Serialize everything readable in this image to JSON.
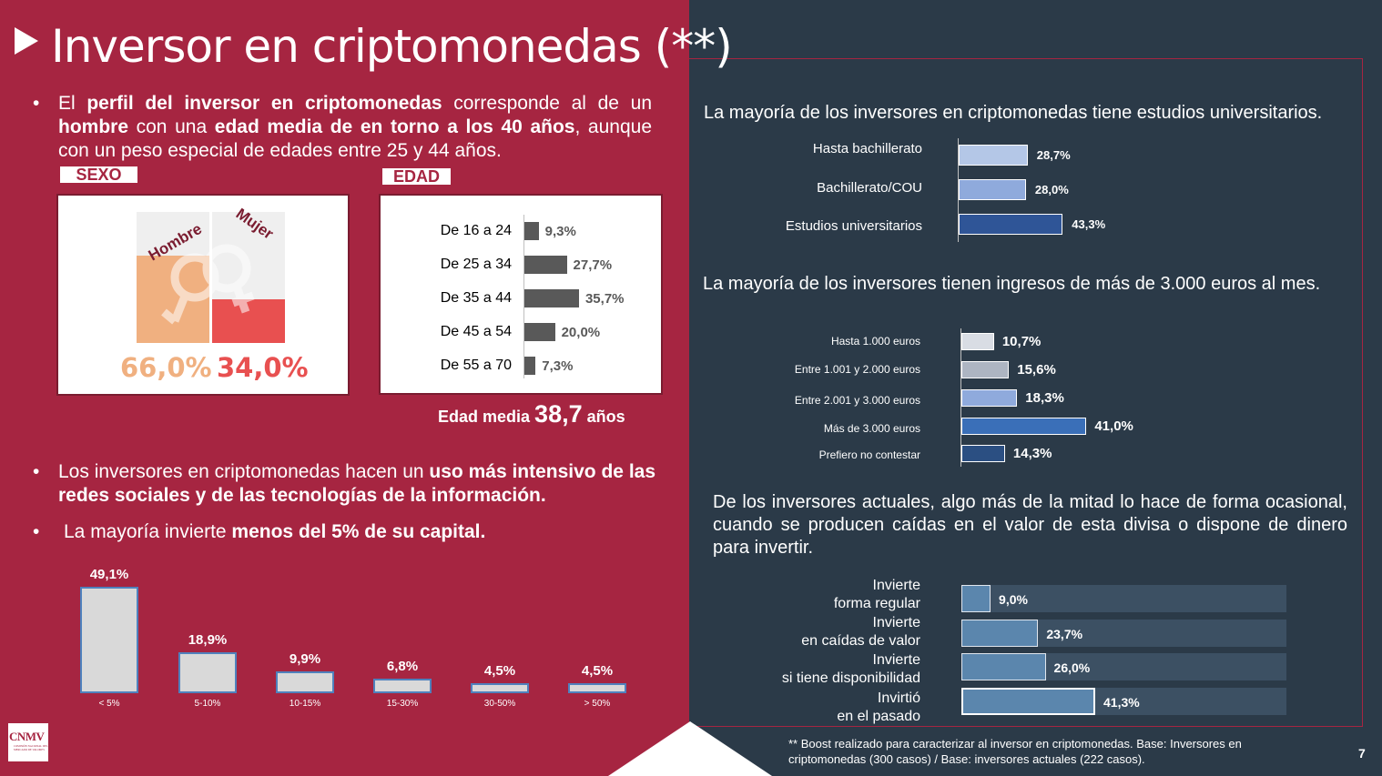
{
  "title": "Inversor en criptomonedas (**)",
  "bullets": {
    "b1": {
      "p1": "El ",
      "p2": "perfil del inversor en criptomonedas",
      "p3": " corresponde al de un ",
      "p4": "hombre",
      "p5": " con una ",
      "p6": "edad media de en torno a los 40 años",
      "p7": ", aunque con un peso especial de edades entre 25 y 44 años."
    },
    "b2": {
      "p1": "Los inversores en criptomonedas hacen un ",
      "p2": "uso más intensivo de las redes sociales y de las tecnologías de la información."
    },
    "b3": {
      "p1": "La mayoría invierte ",
      "p2": "menos del 5% de su capital."
    }
  },
  "colors": {
    "left_bg": "#a62541",
    "right_bg": "#2b3a48",
    "hombre": "#f0b080",
    "mujer": "#e85050"
  },
  "sexo": {
    "tag": "SEXO",
    "hombre_label": "Hombre",
    "mujer_label": "Mujer",
    "hombre_value": 66.0,
    "mujer_value": 34.0,
    "hombre_text": "66,0%",
    "mujer_text": "34,0%"
  },
  "edad": {
    "tag": "EDAD",
    "media_prefix": "Edad media",
    "media_value": "38,7",
    "media_suffix": "años"
  },
  "chart_data": [
    {
      "type": "bar",
      "orientation": "horizontal",
      "categories": [
        "De 16 a 24",
        "De 25 a 34",
        "De 35 a 44",
        "De 45 a 54",
        "De 55 a 70"
      ],
      "values": [
        9.3,
        27.7,
        35.7,
        20.0,
        7.3
      ],
      "labels": [
        "9,3%",
        "27,7%",
        "35,7%",
        "20,0%",
        "7,3%"
      ]
    },
    {
      "type": "bar",
      "categories": [
        "< 5%",
        "5-10%",
        "10-15%",
        "15-30%",
        "30-50%",
        "> 50%"
      ],
      "values": [
        49.1,
        18.9,
        9.9,
        6.8,
        4.5,
        4.5
      ],
      "labels": [
        "49,1%",
        "18,9%",
        "9,9%",
        "6,8%",
        "4,5%",
        "4,5%"
      ]
    },
    {
      "type": "bar",
      "orientation": "horizontal",
      "title": "La mayoría de los inversores en criptomonedas tiene estudios universitarios.",
      "categories": [
        "Hasta bachillerato",
        "Bachillerato/COU",
        "Estudios universitarios"
      ],
      "values": [
        28.7,
        28.0,
        43.3
      ],
      "labels": [
        "28,7%",
        "28,0%",
        "43,3%"
      ],
      "colors": [
        "#b4c7e7",
        "#8faadc",
        "#2f5597"
      ]
    },
    {
      "type": "bar",
      "orientation": "horizontal",
      "title": "La mayoría de los inversores tienen ingresos de más de 3.000 euros al mes.",
      "categories": [
        "Hasta 1.000 euros",
        "Entre 1.001 y 2.000 euros",
        "Entre 2.001 y 3.000 euros",
        "Más de 3.000 euros",
        "Prefiero no contestar"
      ],
      "values": [
        10.7,
        15.6,
        18.3,
        41.0,
        14.3
      ],
      "labels": [
        "10,7%",
        "15,6%",
        "18,3%",
        "41,0%",
        "14,3%"
      ],
      "colors": [
        "#d9dde4",
        "#adb5c2",
        "#8faadc",
        "#3a6fb8",
        "#2b4f82"
      ]
    },
    {
      "type": "bar",
      "orientation": "horizontal",
      "title": "De los inversores actuales, algo más de la mitad lo hace de forma ocasional, cuando se producen caídas en el valor de esta divisa o dispone de dinero para invertir.",
      "categories": [
        [
          "Invierte",
          "forma regular"
        ],
        [
          "Invierte",
          "en caídas de valor"
        ],
        [
          "Invierte",
          "si tiene disponibilidad"
        ],
        [
          "Invirtió",
          "en el pasado"
        ]
      ],
      "values": [
        9.0,
        23.7,
        26.0,
        41.3
      ],
      "labels": [
        "9,0%",
        "23,7%",
        "26,0%",
        "41,3%"
      ]
    }
  ],
  "footnote": "** Boost realizado para caracterizar al inversor en criptomonedas. Base: Inversores en criptomonedas (300 casos) / Base: inversores actuales (222 casos).",
  "page_number": "7",
  "logo": {
    "text": "CNMV",
    "sub": "COMISIÓN NACIONAL DEL MERCADO DE VALORES"
  }
}
